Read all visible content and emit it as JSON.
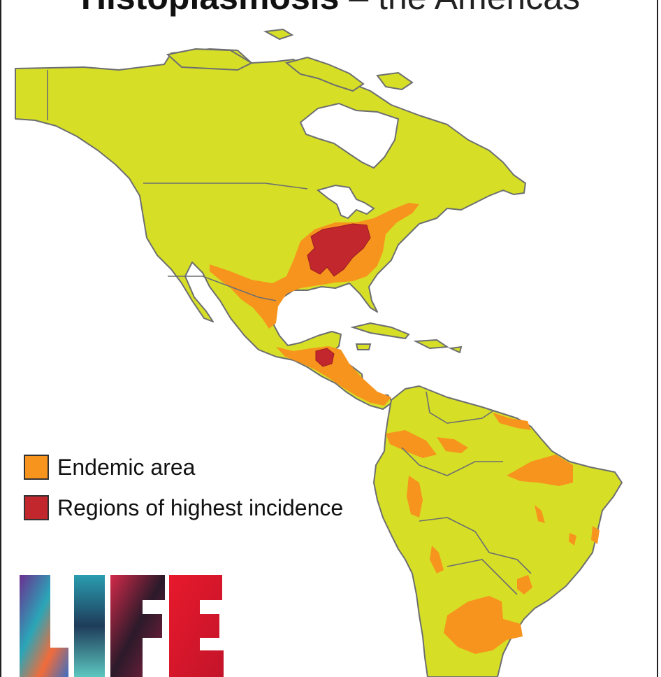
{
  "title": {
    "bold": "Histoplasmosis",
    "rest": " – the Americas"
  },
  "colors": {
    "land": "#d6df26",
    "endemic": "#f7941d",
    "highest": "#c1272d",
    "border": "#6d6e70",
    "water": "#ffffff"
  },
  "legend": {
    "items": [
      {
        "label": "Endemic area",
        "color": "#f7941d"
      },
      {
        "label": "Regions of highest incidence",
        "color": "#c1272d"
      }
    ]
  },
  "logo": {
    "text": "LIFE",
    "style": "multicolor-painted"
  }
}
